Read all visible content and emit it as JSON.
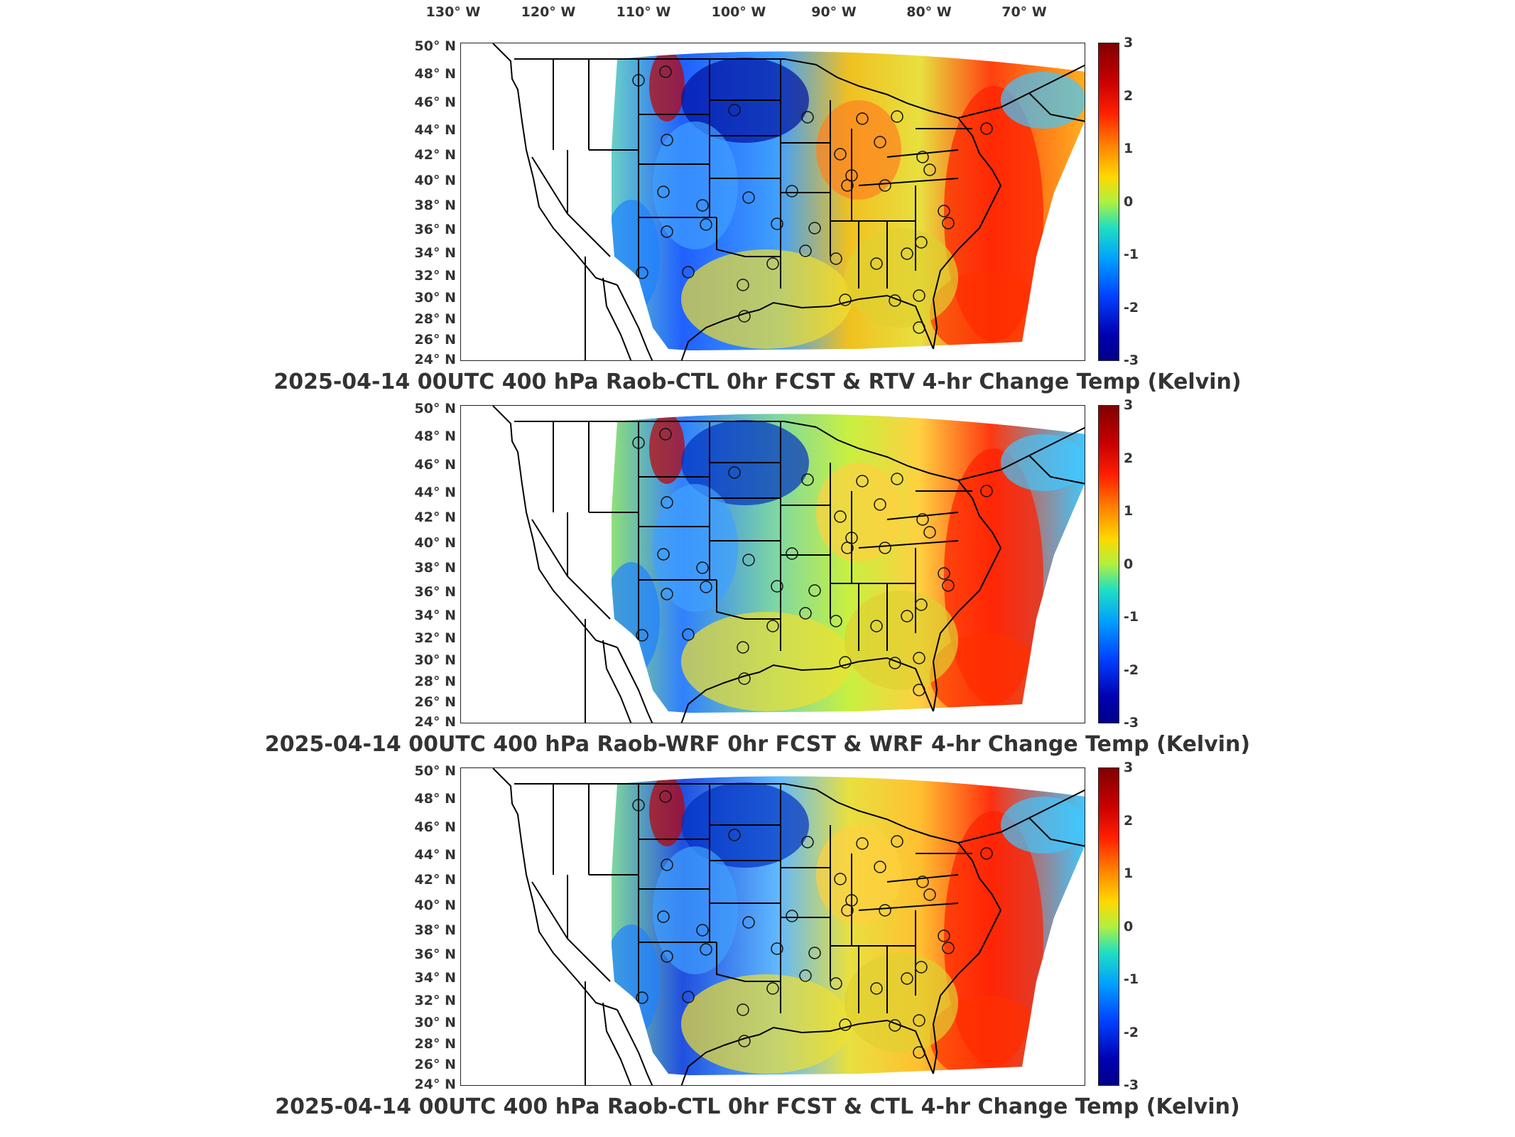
{
  "longitude_labels": [
    "130° W",
    "120° W",
    "110° W",
    "100° W",
    "90° W",
    "80° W",
    "70° W"
  ],
  "latitude_labels": [
    "50° N",
    "48° N",
    "46° N",
    "44° N",
    "42° N",
    "40° N",
    "38° N",
    "36° N",
    "34° N",
    "32° N",
    "30° N",
    "28° N",
    "26° N",
    "24° N"
  ],
  "colorbar": {
    "ticks": [
      "3",
      "2",
      "1",
      "0",
      "-1",
      "-2",
      "-3"
    ],
    "range": [
      -3,
      3
    ],
    "colormap": "jet",
    "colors": [
      "#00008a",
      "#0000ff",
      "#00a0ff",
      "#20e0c0",
      "#b0f040",
      "#ffd800",
      "#ff8000",
      "#ff2000",
      "#800000"
    ]
  },
  "panels": [
    {
      "id": "rtv",
      "title": "2025-04-14 00UTC 400 hPa Raob-CTL 0hr FCST & RTV 4-hr Change Temp (Kelvin)"
    },
    {
      "id": "wrf",
      "title": "2025-04-14 00UTC 400 hPa Raob-WRF 0hr FCST & WRF 4-hr Change Temp (Kelvin)"
    },
    {
      "id": "ctl",
      "title": "2025-04-14 00UTC 400 hPa Raob-CTL 0hr FCST & CTL 4-hr Change Temp (Kelvin)"
    }
  ]
}
